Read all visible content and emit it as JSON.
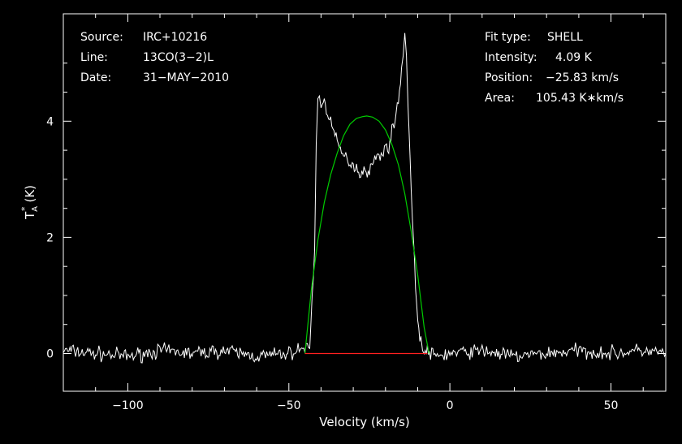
{
  "chart_data": {
    "type": "line",
    "xlabel": "Velocity (km/s)",
    "ylabel": {
      "base": "T",
      "sup": "*",
      "sub": "A",
      "unit": "(K)"
    },
    "xlim": [
      -120,
      67
    ],
    "ylim": [
      -0.65,
      5.85
    ],
    "xticks": [
      -100,
      -50,
      0,
      50
    ],
    "xticklabels": [
      "−100",
      "−50",
      "0",
      "50"
    ],
    "yticks": [
      0,
      2,
      4
    ],
    "yticklabels": [
      "0",
      "2",
      "4"
    ],
    "grid": false,
    "info_left": [
      {
        "key": "Source:",
        "value": "IRC+10216"
      },
      {
        "key": "Line:",
        "value": "13CO(3−2)L"
      },
      {
        "key": "Date:",
        "value": "31−MAY−2010"
      }
    ],
    "info_right": [
      {
        "key": "Fit type:",
        "value": "SHELL"
      },
      {
        "key": "Intensity:",
        "value": "4.09 K"
      },
      {
        "key": "Position:",
        "value": "−25.83 km/s"
      },
      {
        "key": "Area:",
        "value": "105.43 K∗km/s"
      }
    ],
    "series": [
      {
        "role": "spectrum",
        "color": "#ffffff",
        "x": [
          -120,
          -110,
          -100,
          -90,
          -80,
          -70,
          -60,
          -50,
          -45,
          -43.5,
          -42,
          -41.5,
          -41,
          -40.5,
          -40,
          -39,
          -38,
          -37,
          -36,
          -35,
          -34,
          -33,
          -32,
          -31,
          -30,
          -29,
          -28,
          -27,
          -26,
          -25,
          -24,
          -23,
          -22,
          -21,
          -20,
          -19,
          -18,
          -17,
          -16,
          -15,
          -14.5,
          -14,
          -13.5,
          -13,
          -12,
          -11,
          -10,
          -9,
          -8.5,
          -8,
          -7,
          -5,
          0,
          10,
          20,
          30,
          40,
          50,
          60,
          67
        ],
        "y": [
          0.05,
          0.0,
          -0.05,
          0.05,
          0.0,
          0.05,
          -0.05,
          0.0,
          0.1,
          0.1,
          1.8,
          3.6,
          4.45,
          4.4,
          4.3,
          4.3,
          4.2,
          4.0,
          3.8,
          3.6,
          3.5,
          3.4,
          3.35,
          3.3,
          3.25,
          3.2,
          3.1,
          3.15,
          3.2,
          3.1,
          3.3,
          3.35,
          3.4,
          3.5,
          3.5,
          3.6,
          3.8,
          4.0,
          4.4,
          4.9,
          5.1,
          5.5,
          5.2,
          4.3,
          2.8,
          1.5,
          0.6,
          0.2,
          0.05,
          0.0,
          0.05,
          -0.05,
          0.0,
          0.05,
          -0.05,
          0.0,
          0.05,
          0.0,
          0.05,
          0.0
        ]
      },
      {
        "role": "fit",
        "color": "#00cc00",
        "x": [
          -45,
          -43,
          -41,
          -39,
          -37,
          -35,
          -33,
          -31,
          -29,
          -27,
          -25.83,
          -24,
          -22,
          -20,
          -18,
          -16,
          -14,
          -12,
          -10,
          -8,
          -6.5
        ],
        "y": [
          0.0,
          1.1,
          1.95,
          2.6,
          3.08,
          3.45,
          3.75,
          3.95,
          4.05,
          4.08,
          4.09,
          4.07,
          4.0,
          3.85,
          3.6,
          3.25,
          2.75,
          2.1,
          1.35,
          0.45,
          0.0
        ]
      },
      {
        "role": "baseline",
        "color": "#ff2020",
        "x": [
          -45,
          -7
        ],
        "y": [
          0,
          0
        ]
      }
    ]
  }
}
